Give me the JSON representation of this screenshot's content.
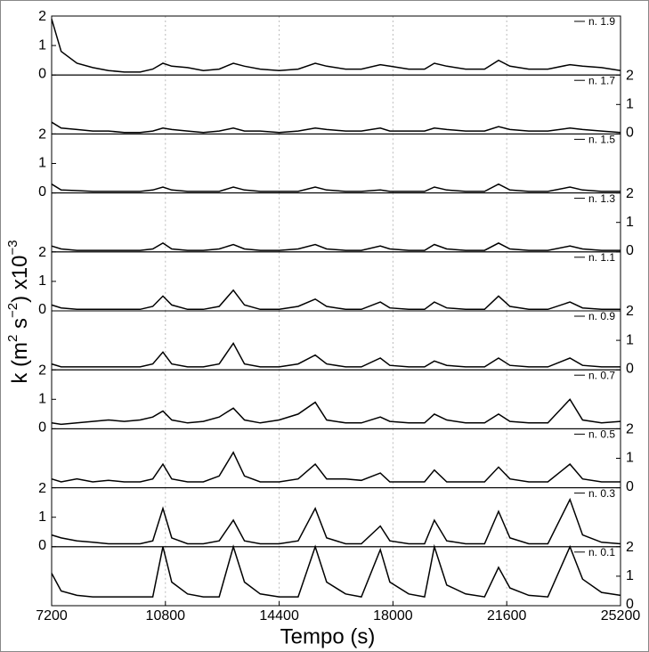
{
  "chart_data": {
    "type": "line",
    "xlabel": "Tempo (s)",
    "ylabel": [
      "k (m",
      "2",
      " s",
      "−2",
      ") x10",
      "−3"
    ],
    "xlim": [
      7200,
      25200
    ],
    "xticks": [
      7200,
      10800,
      14400,
      18000,
      21600,
      25200
    ],
    "ylim": [
      0,
      2
    ],
    "yticks": [
      0,
      1,
      2
    ],
    "grid": true,
    "x": [
      7200,
      7500,
      8000,
      8500,
      9000,
      9500,
      10000,
      10400,
      10720,
      11000,
      11500,
      12000,
      12500,
      12950,
      13300,
      13800,
      14400,
      15000,
      15540,
      15900,
      16500,
      17000,
      17600,
      17900,
      18500,
      19000,
      19310,
      19700,
      20300,
      20900,
      21340,
      21700,
      22300,
      22900,
      23600,
      24000,
      24600,
      25200
    ],
    "series": [
      {
        "name": "n. 1.9",
        "color": "#000000",
        "values": [
          1.9,
          0.8,
          0.4,
          0.25,
          0.15,
          0.1,
          0.1,
          0.2,
          0.4,
          0.3,
          0.25,
          0.15,
          0.2,
          0.4,
          0.3,
          0.2,
          0.15,
          0.2,
          0.4,
          0.3,
          0.2,
          0.2,
          0.35,
          0.3,
          0.2,
          0.2,
          0.4,
          0.3,
          0.2,
          0.2,
          0.5,
          0.3,
          0.2,
          0.2,
          0.35,
          0.3,
          0.25,
          0.15
        ]
      },
      {
        "name": "n. 1.7",
        "color": "#000000",
        "values": [
          0.4,
          0.2,
          0.15,
          0.1,
          0.1,
          0.05,
          0.05,
          0.1,
          0.2,
          0.15,
          0.1,
          0.05,
          0.1,
          0.2,
          0.1,
          0.1,
          0.05,
          0.1,
          0.2,
          0.15,
          0.1,
          0.1,
          0.2,
          0.1,
          0.1,
          0.1,
          0.2,
          0.15,
          0.1,
          0.1,
          0.25,
          0.15,
          0.1,
          0.1,
          0.2,
          0.15,
          0.1,
          0.05
        ]
      },
      {
        "name": "n. 1.5",
        "color": "#000000",
        "values": [
          0.3,
          0.1,
          0.08,
          0.05,
          0.05,
          0.05,
          0.05,
          0.1,
          0.2,
          0.1,
          0.05,
          0.05,
          0.05,
          0.2,
          0.1,
          0.05,
          0.05,
          0.05,
          0.2,
          0.1,
          0.05,
          0.05,
          0.1,
          0.05,
          0.05,
          0.05,
          0.2,
          0.1,
          0.05,
          0.05,
          0.3,
          0.1,
          0.05,
          0.05,
          0.2,
          0.1,
          0.05,
          0.05
        ]
      },
      {
        "name": "n. 1.3",
        "color": "#000000",
        "values": [
          0.2,
          0.1,
          0.05,
          0.05,
          0.05,
          0.05,
          0.05,
          0.1,
          0.3,
          0.1,
          0.05,
          0.05,
          0.1,
          0.25,
          0.1,
          0.05,
          0.05,
          0.1,
          0.25,
          0.1,
          0.05,
          0.05,
          0.2,
          0.1,
          0.05,
          0.05,
          0.25,
          0.1,
          0.05,
          0.05,
          0.3,
          0.1,
          0.05,
          0.05,
          0.2,
          0.1,
          0.05,
          0.05
        ]
      },
      {
        "name": "n. 1.1",
        "color": "#000000",
        "values": [
          0.2,
          0.1,
          0.05,
          0.05,
          0.05,
          0.05,
          0.05,
          0.15,
          0.5,
          0.2,
          0.05,
          0.05,
          0.15,
          0.7,
          0.2,
          0.05,
          0.05,
          0.15,
          0.4,
          0.15,
          0.05,
          0.05,
          0.3,
          0.1,
          0.05,
          0.05,
          0.3,
          0.1,
          0.05,
          0.05,
          0.5,
          0.15,
          0.05,
          0.05,
          0.3,
          0.1,
          0.05,
          0.05
        ]
      },
      {
        "name": "n. 0.9",
        "color": "#000000",
        "values": [
          0.2,
          0.1,
          0.1,
          0.1,
          0.1,
          0.1,
          0.1,
          0.2,
          0.6,
          0.2,
          0.1,
          0.1,
          0.2,
          0.9,
          0.2,
          0.1,
          0.1,
          0.2,
          0.5,
          0.2,
          0.1,
          0.1,
          0.4,
          0.15,
          0.1,
          0.1,
          0.3,
          0.15,
          0.1,
          0.1,
          0.4,
          0.15,
          0.1,
          0.1,
          0.4,
          0.15,
          0.1,
          0.1
        ]
      },
      {
        "name": "n. 0.7",
        "color": "#000000",
        "values": [
          0.2,
          0.15,
          0.2,
          0.25,
          0.3,
          0.25,
          0.3,
          0.4,
          0.6,
          0.3,
          0.2,
          0.25,
          0.4,
          0.7,
          0.3,
          0.2,
          0.3,
          0.5,
          0.9,
          0.3,
          0.2,
          0.2,
          0.4,
          0.25,
          0.2,
          0.2,
          0.5,
          0.3,
          0.2,
          0.2,
          0.5,
          0.25,
          0.2,
          0.2,
          1.0,
          0.3,
          0.2,
          0.25
        ]
      },
      {
        "name": "n. 0.5",
        "color": "#000000",
        "values": [
          0.3,
          0.2,
          0.3,
          0.2,
          0.25,
          0.2,
          0.2,
          0.3,
          0.8,
          0.3,
          0.2,
          0.2,
          0.4,
          1.2,
          0.4,
          0.2,
          0.2,
          0.3,
          0.8,
          0.3,
          0.3,
          0.25,
          0.5,
          0.2,
          0.2,
          0.2,
          0.6,
          0.2,
          0.2,
          0.2,
          0.7,
          0.3,
          0.2,
          0.2,
          0.8,
          0.3,
          0.2,
          0.2
        ]
      },
      {
        "name": "n. 0.3",
        "color": "#000000",
        "values": [
          0.4,
          0.3,
          0.2,
          0.15,
          0.1,
          0.1,
          0.1,
          0.2,
          1.3,
          0.3,
          0.1,
          0.1,
          0.2,
          0.9,
          0.2,
          0.1,
          0.1,
          0.2,
          1.3,
          0.3,
          0.1,
          0.1,
          0.7,
          0.2,
          0.1,
          0.1,
          0.9,
          0.2,
          0.1,
          0.1,
          1.2,
          0.3,
          0.1,
          0.1,
          1.6,
          0.4,
          0.15,
          0.1
        ]
      },
      {
        "name": "n. 0.1",
        "color": "#000000",
        "values": [
          1.1,
          0.5,
          0.35,
          0.3,
          0.3,
          0.3,
          0.3,
          0.3,
          2.0,
          0.8,
          0.4,
          0.3,
          0.3,
          2.0,
          0.8,
          0.4,
          0.3,
          0.3,
          2.0,
          0.8,
          0.4,
          0.3,
          1.9,
          0.8,
          0.4,
          0.3,
          2.0,
          0.7,
          0.4,
          0.3,
          1.3,
          0.6,
          0.35,
          0.3,
          2.0,
          0.9,
          0.45,
          0.35
        ]
      }
    ]
  }
}
